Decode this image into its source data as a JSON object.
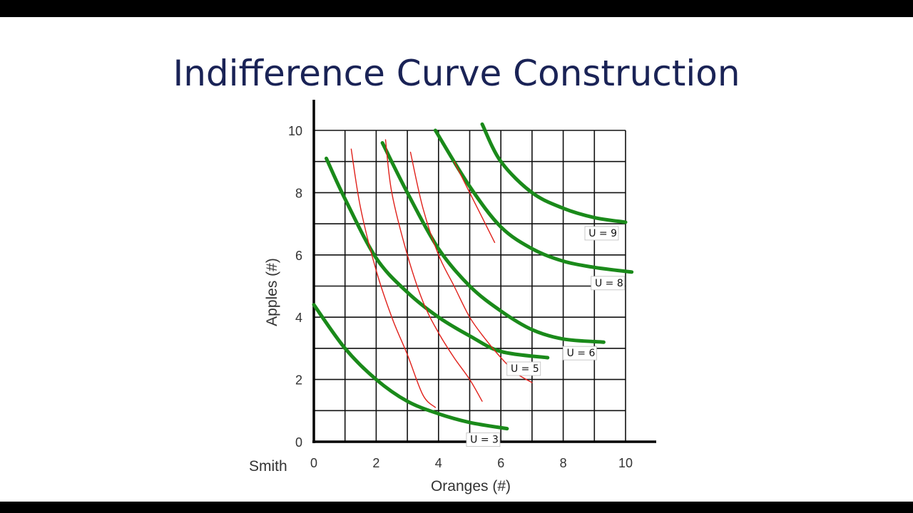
{
  "slide": {
    "title": "Indifference Curve Construction"
  },
  "chart_data": {
    "type": "line",
    "subject_label": "Smith",
    "xlabel": "Oranges (#)",
    "ylabel": "Apples (#)",
    "xlim": [
      0,
      10
    ],
    "ylim": [
      0,
      10
    ],
    "xticks": [
      "0",
      "2",
      "4",
      "6",
      "8",
      "10"
    ],
    "yticks": [
      "0",
      "2",
      "4",
      "6",
      "8",
      "10"
    ],
    "grid": true,
    "colors": {
      "indifference": "#1a8a1a",
      "sketch": "#e0201a",
      "grid": "#111111"
    },
    "series": [
      {
        "name": "U = 3",
        "kind": "indifference",
        "x": [
          0,
          1,
          2,
          3,
          4,
          5,
          6.2
        ],
        "y": [
          4.4,
          3.0,
          2.0,
          1.3,
          0.9,
          0.62,
          0.42
        ]
      },
      {
        "name": "U = 5",
        "kind": "indifference",
        "x": [
          0.4,
          1,
          2,
          3,
          4,
          5,
          6,
          7.5
        ],
        "y": [
          9.1,
          7.8,
          5.9,
          4.8,
          4.0,
          3.4,
          2.9,
          2.7
        ]
      },
      {
        "name": "U = 6",
        "kind": "indifference",
        "x": [
          2.2,
          3,
          4,
          5,
          6,
          7,
          8,
          9.3
        ],
        "y": [
          9.6,
          8.0,
          6.2,
          5.0,
          4.2,
          3.6,
          3.3,
          3.2
        ]
      },
      {
        "name": "U = 8",
        "kind": "indifference",
        "x": [
          3.9,
          5,
          6,
          7,
          8,
          9,
          10.2
        ],
        "y": [
          10.0,
          8.2,
          6.9,
          6.2,
          5.8,
          5.6,
          5.45
        ]
      },
      {
        "name": "U = 9",
        "kind": "indifference",
        "x": [
          5.4,
          6,
          7,
          8,
          9,
          10
        ],
        "y": [
          10.2,
          9.0,
          8.0,
          7.5,
          7.2,
          7.05
        ]
      },
      {
        "name": "",
        "kind": "sketch",
        "x": [
          1.2,
          1.5,
          2.0,
          2.5,
          3.0,
          3.5,
          3.9
        ],
        "y": [
          9.4,
          7.5,
          5.5,
          4.0,
          2.8,
          1.5,
          1.1
        ]
      },
      {
        "name": "",
        "kind": "sketch",
        "x": [
          2.3,
          2.5,
          3.0,
          3.5,
          4.0,
          4.5,
          5.0,
          5.4
        ],
        "y": [
          9.7,
          8.0,
          6.0,
          4.5,
          3.5,
          2.7,
          2.0,
          1.3
        ]
      },
      {
        "name": "",
        "kind": "sketch",
        "x": [
          3.1,
          3.5,
          4.0,
          4.5,
          5.0,
          5.5,
          6.0,
          6.5,
          7.0
        ],
        "y": [
          9.3,
          7.5,
          6.0,
          5.0,
          4.0,
          3.3,
          2.7,
          2.2,
          1.9
        ]
      },
      {
        "name": "",
        "kind": "sketch",
        "x": [
          4.5,
          5.0,
          5.5,
          5.8
        ],
        "y": [
          9.0,
          8.0,
          7.0,
          6.4
        ]
      }
    ]
  }
}
